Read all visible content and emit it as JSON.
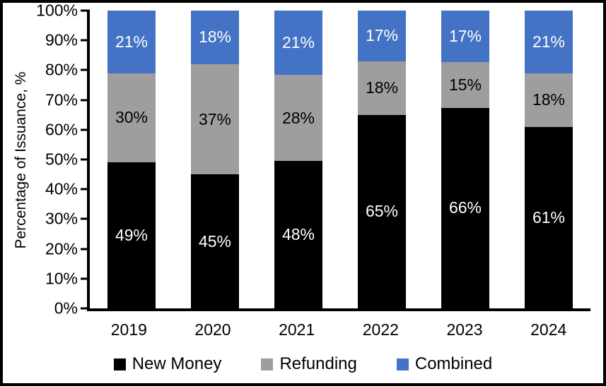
{
  "chart_data": {
    "type": "bar",
    "stacked": true,
    "title": "",
    "xlabel": "",
    "ylabel": "Percentage of Issuance, %",
    "categories": [
      "2019",
      "2020",
      "2021",
      "2022",
      "2023",
      "2024"
    ],
    "series": [
      {
        "name": "New Money",
        "color": "#000000",
        "label_color": "#ffffff",
        "values": [
          49,
          45,
          48,
          65,
          66,
          61
        ]
      },
      {
        "name": "Refunding",
        "color": "#9E9E9E",
        "label_color": "#000000",
        "values": [
          30,
          37,
          28,
          18,
          15,
          18
        ]
      },
      {
        "name": "Combined",
        "color": "#4472C4",
        "label_color": "#ffffff",
        "values": [
          21,
          18,
          21,
          17,
          17,
          21
        ]
      }
    ],
    "value_suffix": "%",
    "y_ticks": [
      "0%",
      "10%",
      "20%",
      "30%",
      "40%",
      "50%",
      "60%",
      "70%",
      "80%",
      "90%",
      "100%"
    ],
    "ylim": [
      0,
      100
    ],
    "grid": false,
    "legend_position": "bottom",
    "frame_color": "#000000",
    "background_color": "#ffffff"
  }
}
